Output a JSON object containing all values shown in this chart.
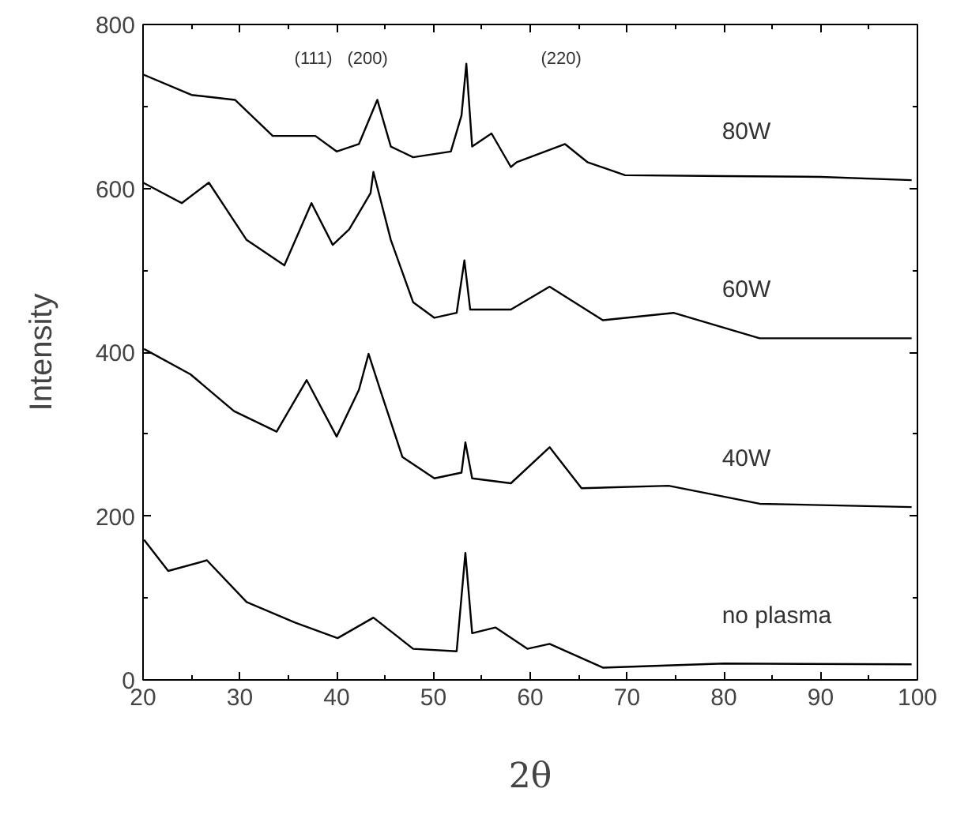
{
  "chart_data": {
    "type": "line",
    "xlabel": "2θ",
    "ylabel": "Intensity",
    "xlim": [
      20,
      100
    ],
    "ylim": [
      0,
      800
    ],
    "xticks": [
      20,
      30,
      40,
      50,
      60,
      70,
      80,
      90,
      100
    ],
    "yticks": [
      0,
      200,
      400,
      600,
      800
    ],
    "grid": false,
    "legend": false,
    "marker": "none",
    "line_style": "solid",
    "annotations": [
      "(111)",
      "(200)",
      "(220)"
    ],
    "series": [
      {
        "name": "80W",
        "color": "#000000",
        "x": [
          20,
          25,
          29.5,
          33.4,
          37.8,
          40,
          42.3,
          44.2,
          45.6,
          47.9,
          51.8,
          52.9,
          53.4,
          54,
          56,
          58,
          58.6,
          63.6,
          65.9,
          69.8,
          80,
          90,
          99.4
        ],
        "values": [
          739,
          714,
          708,
          664,
          664,
          645,
          654,
          708,
          651,
          638,
          645,
          689,
          752,
          651,
          667,
          626,
          632,
          654,
          632,
          616,
          615,
          614,
          610
        ]
      },
      {
        "name": "60W",
        "color": "#000000",
        "x": [
          20,
          24,
          26.8,
          30.7,
          34.6,
          37.4,
          39.6,
          41.3,
          43.5,
          43.8,
          45.6,
          47.9,
          50.1,
          52.4,
          53.2,
          53.8,
          58,
          62,
          67.5,
          74.8,
          83.7,
          99.4
        ],
        "values": [
          607,
          582,
          607,
          537,
          506,
          582,
          531,
          550,
          594,
          620,
          537,
          461,
          442,
          448,
          512,
          452,
          452,
          480,
          439,
          448,
          417,
          417
        ]
      },
      {
        "name": "40W",
        "color": "#000000",
        "x": [
          20.1,
          24.9,
          29.4,
          33.8,
          36.9,
          40,
          42.3,
          43.3,
          44.5,
          46.8,
          50.1,
          52.9,
          53.3,
          54,
          58,
          62,
          65.3,
          74.3,
          83.7,
          99.4
        ],
        "values": [
          404,
          373,
          328,
          303,
          366,
          297,
          354,
          398,
          354,
          272,
          246,
          253,
          290,
          246,
          240,
          284,
          234,
          237,
          215,
          211
        ]
      },
      {
        "name": "no plasma",
        "color": "#000000",
        "x": [
          20.1,
          22.6,
          26.6,
          30.7,
          35.7,
          40.1,
          43.8,
          47.9,
          52.4,
          53.3,
          54,
          56.4,
          59.7,
          62,
          67.5,
          80,
          99.4
        ],
        "values": [
          171,
          133,
          146,
          95,
          70,
          51,
          76,
          38,
          35,
          155,
          57,
          64,
          38,
          44,
          15,
          20,
          19
        ]
      }
    ]
  }
}
